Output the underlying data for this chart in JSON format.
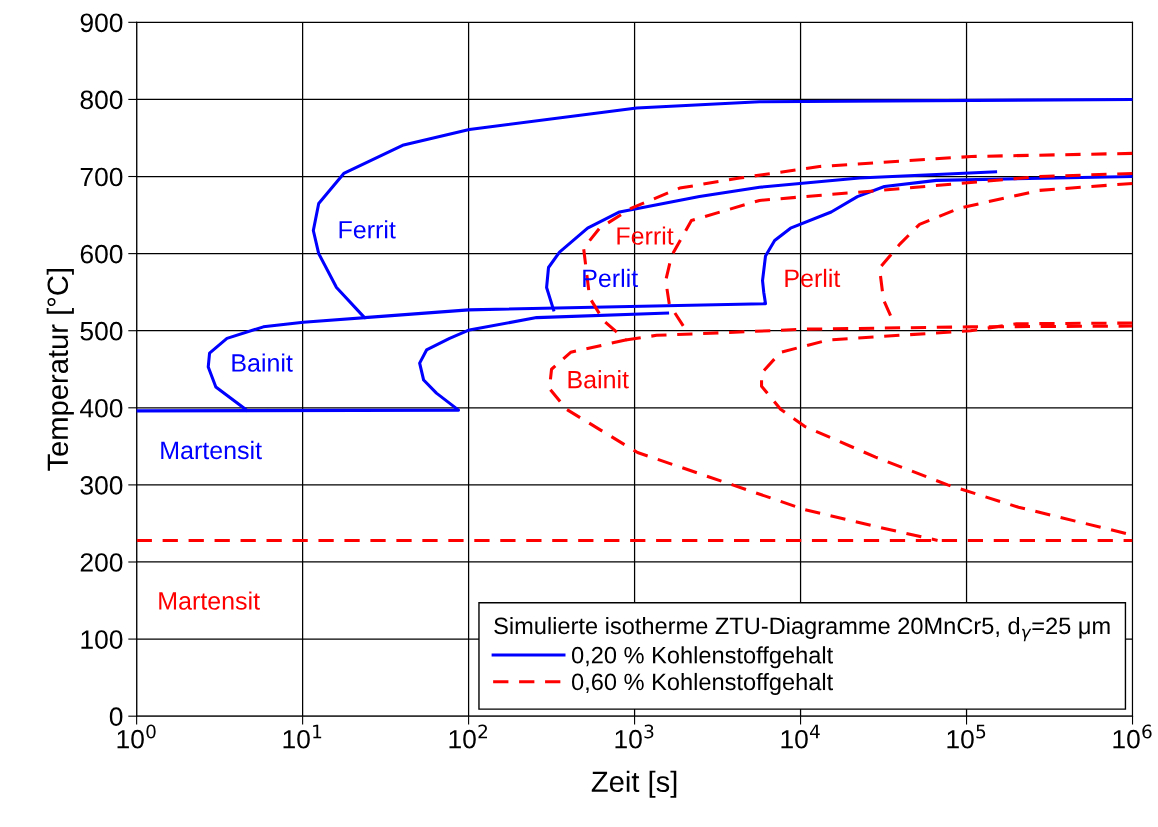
{
  "chart_data": {
    "type": "line",
    "xlabel": "Zeit [s]",
    "ylabel": "Temperatur [°C]",
    "log": "x",
    "grid": true,
    "legend": "bottom right",
    "marker": "none",
    "legend_title": "Simulierte isotherme ZTU-Diagramme 20MnCr5, d$_{γ}$=25 μm",
    "xlim": [
      1,
      1000000
    ],
    "xticks": [
      {
        "value": 1,
        "label": "10$^{0}$"
      },
      {
        "value": 10,
        "label": "10$^{1}$"
      },
      {
        "value": 100,
        "label": "10$^{2}$"
      },
      {
        "value": 1000,
        "label": "10$^{3}$"
      },
      {
        "value": 10000,
        "label": "10$^{4}$"
      },
      {
        "value": 100000,
        "label": "10$^{5}$"
      },
      {
        "value": 1000000,
        "label": "10$^{6}$"
      }
    ],
    "ylim": [
      0,
      900
    ],
    "yticks": [
      0,
      100,
      200,
      300,
      400,
      500,
      600,
      700,
      800,
      900
    ],
    "series": [
      {
        "name": "0,20 % Kohlenstoffgehalt",
        "color": "#0000ff",
        "line_style": "solid",
        "x": [
          1000000,
          5660,
          1030,
          101,
          40.6,
          17.7,
          12.5,
          11.6,
          12.5,
          16.0,
          23.6,
          100,
          6150,
          6000,
          5900,
          6150,
          6980,
          8700,
          15300,
          22000,
          32000,
          66000,
          1000000
        ],
        "values": [
          800,
          797,
          789,
          761,
          741,
          704,
          665,
          630,
          600,
          556,
          517,
          527,
          535,
          550,
          565,
          597,
          617,
          633,
          654,
          674,
          687,
          695,
          700
        ]
      },
      {
        "color": "#0000ff",
        "line_style": "solid",
        "x": [
          23.6,
          10.1,
          5.8,
          3.5,
          2.75,
          2.7,
          3.0,
          4.6
        ],
        "values": [
          517,
          511,
          505,
          490,
          471,
          453,
          427,
          397
        ]
      },
      {
        "color": "#0000ff",
        "line_style": "solid",
        "x": [
          1,
          87,
          64,
          53.6,
          50.7,
          55.8,
          76.8,
          101,
          257,
          1580
        ],
        "values": [
          396,
          397,
          419,
          436,
          458,
          475,
          490,
          501,
          517,
          523
        ]
      },
      {
        "color": "#0000ff",
        "line_style": "solid",
        "x": [
          325,
          295,
          303,
          353,
          521,
          812,
          2460,
          5660,
          22600,
          149600
        ],
        "values": [
          527,
          556,
          582,
          602,
          633,
          654,
          674,
          686,
          698,
          706
        ]
      },
      {
        "name": "0,60 % Kohlenstoffgehalt",
        "color": "#ff0000",
        "line_style": "dashed",
        "x": [
          1,
          1000000
        ],
        "values": [
          228,
          228
        ]
      },
      {
        "color": "#ff0000",
        "line_style": "dashed",
        "x": [
          1000000,
          107000,
          13000,
          4290,
          1870,
          959,
          615,
          493,
          536,
          651,
          883,
          412,
          316,
          307,
          389,
          1042,
          3890,
          10570,
          28300,
          66900
        ],
        "values": [
          730,
          726,
          713,
          698,
          685,
          659,
          633,
          607,
          543,
          513,
          488,
          472,
          450,
          425,
          398,
          342,
          300,
          268,
          246,
          228
        ]
      },
      {
        "color": "#ff0000",
        "line_style": "dashed",
        "x": [
          883,
          1358,
          4000,
          10570,
          105700,
          1000000
        ],
        "values": [
          488,
          494,
          498,
          502,
          505,
          506
        ]
      },
      {
        "color": "#ff0000",
        "line_style": "dashed",
        "x": [
          1000000,
          275000,
          29900,
          5660,
          2200,
          1670,
          1540,
          1620,
          2080
        ],
        "values": [
          704,
          700,
          682,
          669,
          643,
          597,
          565,
          534,
          498
        ]
      },
      {
        "color": "#ff0000",
        "line_style": "dashed",
        "x": [
          1000000,
          200000,
          105700,
          39500,
          14700,
          7580,
          5820,
          5820,
          7580,
          10570,
          28300,
          76900,
          205600,
          1000000
        ],
        "values": [
          510,
          509,
          500,
          494,
          488,
          472,
          445,
          428,
          398,
          376,
          336,
          300,
          271,
          235
        ]
      },
      {
        "color": "#ff0000",
        "line_style": "dashed",
        "x": [
          1000000,
          275000,
          90700,
          52100,
          39500,
          29900,
          31600,
          36300
        ],
        "values": [
          691,
          682,
          659,
          638,
          612,
          581,
          540,
          511
        ]
      }
    ],
    "annotations": [
      "Ferrit",
      "Bainit",
      "Martensit",
      "Perlit",
      "Ferrit",
      "Perlit",
      "Bainit",
      "Martensit"
    ]
  }
}
